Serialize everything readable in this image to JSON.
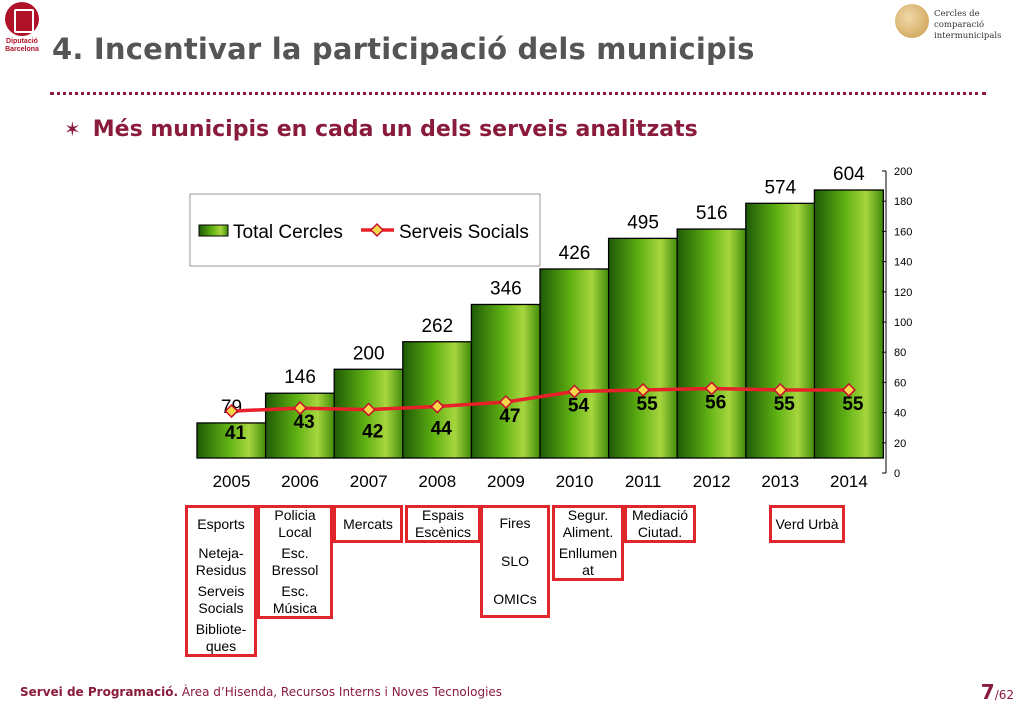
{
  "branding": {
    "left_logo_text": "Diputació Barcelona",
    "right_logo_text": "Cercles de comparació intermunicipals"
  },
  "header": {
    "title": "4. Incentivar la participació dels municipis",
    "subtitle": "Més municipis en cada un dels serveis analitzats"
  },
  "chart_data": {
    "type": "bar",
    "categories": [
      "2005",
      "2006",
      "2007",
      "2008",
      "2009",
      "2010",
      "2011",
      "2012",
      "2013",
      "2014"
    ],
    "series": [
      {
        "name": "Total Cercles",
        "type": "bar",
        "values": [
          79,
          146,
          200,
          262,
          346,
          426,
          495,
          516,
          574,
          604
        ]
      },
      {
        "name": "Serveis Socials",
        "type": "line",
        "axis": "right",
        "values": [
          41,
          43,
          42,
          44,
          47,
          54,
          55,
          56,
          55,
          55
        ]
      }
    ],
    "y2_ticks": [
      0,
      20,
      40,
      60,
      80,
      100,
      120,
      140,
      160,
      180,
      200
    ],
    "y2lim": [
      0,
      200
    ],
    "ylim": [
      0,
      640
    ],
    "legend": "top-left",
    "colors": {
      "bar": "#4a9a0c",
      "line": "#e8202a",
      "marker": "#f4d84a"
    }
  },
  "services_tables": [
    {
      "cells": [
        "Esports",
        "Neteja-\nResidus",
        "Serveis\nSocials",
        "Bibliote-\nques"
      ]
    },
    {
      "cells": [
        "Policia\nLocal",
        "Esc.\nBressol",
        "Esc.\nMúsica"
      ]
    },
    {
      "cells": [
        "Mercats"
      ]
    },
    {
      "cells": [
        "Espais\nEscènics"
      ]
    },
    {
      "cells": [
        "Fires",
        "SLO",
        "OMICs"
      ]
    },
    {
      "cells": [
        "Segur.\nAliment.",
        "Enllumen\nat"
      ]
    },
    {
      "cells": [
        "Mediació\nCiutad."
      ]
    },
    {
      "cells": [
        "Verd Urbà"
      ]
    }
  ],
  "footer": {
    "bold": "Servei de Programació.",
    "rest": " Àrea d’Hisenda, Recursos Interns i Noves Tecnologies",
    "page": "7",
    "total": "/62"
  }
}
